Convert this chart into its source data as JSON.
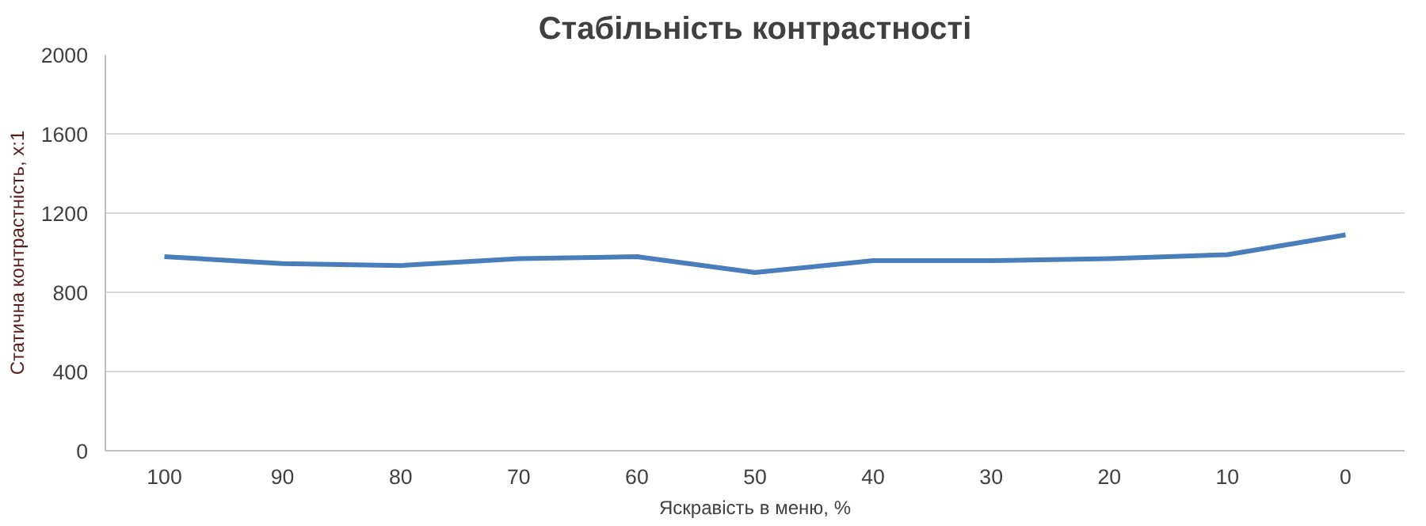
{
  "chart_data": {
    "type": "line",
    "title": "Стабільність контрастності",
    "xlabel": "Яскравість в меню, %",
    "ylabel": "Статична контрастність, x:1",
    "categories": [
      "100",
      "90",
      "80",
      "70",
      "60",
      "50",
      "40",
      "30",
      "20",
      "10",
      "0"
    ],
    "series": [
      {
        "color": "#4a7ebb",
        "values": [
          980,
          945,
          935,
          970,
          980,
          900,
          960,
          960,
          970,
          990,
          1090
        ]
      }
    ],
    "ylim": [
      0,
      2000
    ],
    "yticks": [
      0,
      400,
      800,
      1200,
      1600,
      2000
    ],
    "grid": "y",
    "marker": "none",
    "line_style": "solid"
  }
}
